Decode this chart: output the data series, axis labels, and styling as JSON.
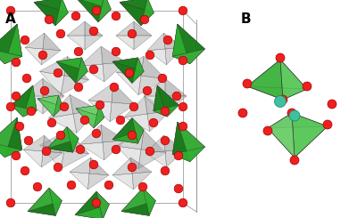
{
  "figsize": [
    4.0,
    2.45
  ],
  "dpi": 100,
  "background_color": "#ffffff",
  "label_A": "A",
  "label_B": "B",
  "label_fontsize": 11,
  "label_fontweight": "bold",
  "colors": {
    "dark_green_face": "#1a7a1a",
    "dark_green_light": "#2db02d",
    "mid_green": "#3ab03a",
    "light_green": "#5ac85a",
    "lighter_green": "#70d070",
    "teal": "#40c0a0",
    "red": "#ee2020",
    "gray_dark": "#909090",
    "gray_mid": "#b0b0b0",
    "gray_light": "#d0d0d0",
    "gray_edge": "#787878",
    "black": "#000000",
    "white": "#ffffff"
  }
}
